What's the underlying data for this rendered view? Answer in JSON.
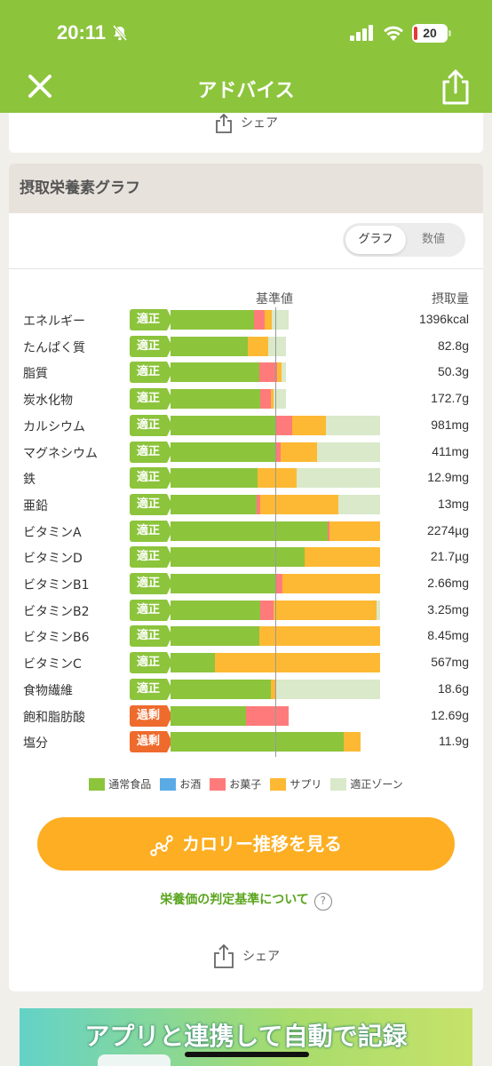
{
  "status": {
    "time": "20:11",
    "battery": "20"
  },
  "nav": {
    "title": "アドバイス"
  },
  "share_label": "シェア",
  "graph_card": {
    "title": "摂取栄養素グラフ",
    "toggle": {
      "graph": "グラフ",
      "values": "数値"
    },
    "reference_label": "基準値",
    "intake_label": "摂取量"
  },
  "colors": {
    "normal_food": "#8cc43c",
    "alcohol": "#5aabe5",
    "snacks": "#ff7b7b",
    "supplement": "#fdb933",
    "optimal_zone": "#d9e9c9",
    "badge_ok": "#8cc43c",
    "badge_over": "#ee6b2d"
  },
  "chart_data": {
    "type": "bar",
    "orientation": "horizontal",
    "stacked": true,
    "reference_label": "基準値",
    "value_label": "摂取量",
    "unit": "fraction of reference value (基準値 = 1.0)",
    "categories": [
      "エネルギー",
      "たんぱく質",
      "脂質",
      "炭水化物",
      "カルシウム",
      "マグネシウム",
      "鉄",
      "亜鉛",
      "ビタミンA",
      "ビタミンD",
      "ビタミンB1",
      "ビタミンB2",
      "ビタミンB6",
      "ビタミンC",
      "食物繊維",
      "飽和脂肪酸",
      "塩分"
    ],
    "status": [
      "適正",
      "適正",
      "適正",
      "適正",
      "適正",
      "適正",
      "適正",
      "適正",
      "適正",
      "適正",
      "適正",
      "適正",
      "適正",
      "適正",
      "適正",
      "過剰",
      "過剰"
    ],
    "intake": [
      "1396kcal",
      "82.8g",
      "50.3g",
      "172.7g",
      "981mg",
      "411mg",
      "12.9mg",
      "13mg",
      "2274µg",
      "21.7µg",
      "2.66mg",
      "3.25mg",
      "8.45mg",
      "567mg",
      "18.6g",
      "12.69g",
      "11.9g"
    ],
    "series": [
      {
        "name": "通常食品",
        "values": [
          0.8,
          0.74,
          0.85,
          0.86,
          1.0,
          1.0,
          0.83,
          0.82,
          1.5,
          1.28,
          1.0,
          0.86,
          0.85,
          0.42,
          0.96,
          0.72,
          1.65
        ]
      },
      {
        "name": "お酒",
        "values": [
          0,
          0,
          0,
          0,
          0,
          0,
          0,
          0,
          0,
          0,
          0,
          0,
          0,
          0,
          0,
          0,
          0
        ]
      },
      {
        "name": "お菓子",
        "values": [
          0.1,
          0,
          0.17,
          0.1,
          0.16,
          0.05,
          0,
          0.04,
          0.02,
          0,
          0.07,
          0.12,
          0,
          0,
          0,
          0.41,
          0
        ]
      },
      {
        "name": "サプリ",
        "values": [
          0.07,
          0.19,
          0.04,
          0.02,
          0.32,
          0.35,
          0.37,
          0.74,
          0.48,
          0.72,
          0.93,
          0.99,
          1.15,
          1.58,
          0.05,
          0,
          0.16
        ]
      },
      {
        "name": "適正ゾーン",
        "values": [
          1.13,
          1.1,
          1.1,
          1.1,
          2.0,
          2.0,
          2.0,
          2.0,
          2.0,
          2.0,
          2.0,
          2.0,
          2.0,
          2.0,
          2.0,
          0,
          0
        ]
      }
    ],
    "legend": [
      "通常食品",
      "お酒",
      "お菓子",
      "サプリ",
      "適正ゾーン"
    ],
    "legend_position": "bottom"
  },
  "cta": {
    "label": "カロリー推移を見る"
  },
  "criteria_link": {
    "label": "栄養価の判定基準について"
  },
  "banner": {
    "text": "アプリと連携して自動で記録"
  }
}
